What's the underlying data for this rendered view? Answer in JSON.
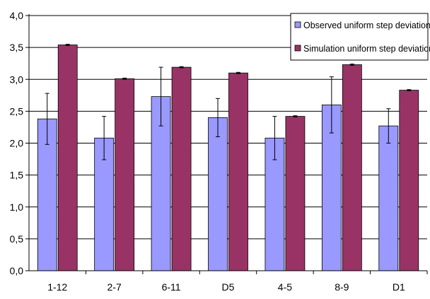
{
  "chart_data": {
    "type": "bar",
    "categories": [
      "1-12",
      "2-7",
      "6-11",
      "D5",
      "4-5",
      "8-9",
      "D1"
    ],
    "series": [
      {
        "name": "Observed uniform step deviation",
        "color": "#9999ff",
        "values": [
          2.38,
          2.08,
          2.73,
          2.4,
          2.08,
          2.6,
          2.27
        ],
        "error": [
          0.4,
          0.34,
          0.46,
          0.3,
          0.34,
          0.44,
          0.27
        ]
      },
      {
        "name": "Simulation uniform step deviation",
        "color": "#993366",
        "values": [
          3.54,
          3.01,
          3.19,
          3.1,
          2.42,
          3.23,
          2.83
        ],
        "error": [
          0.01,
          0.01,
          0.01,
          0.01,
          0.01,
          0.01,
          0.01
        ]
      }
    ],
    "ylim": [
      0,
      4
    ],
    "yticks": [
      "0,0",
      "0,5",
      "1,0",
      "1,5",
      "2,0",
      "2,5",
      "3,0",
      "3,5",
      "4,0"
    ],
    "grid": true,
    "legend_position": "top-right",
    "title": "",
    "xlabel": "",
    "ylabel": ""
  }
}
